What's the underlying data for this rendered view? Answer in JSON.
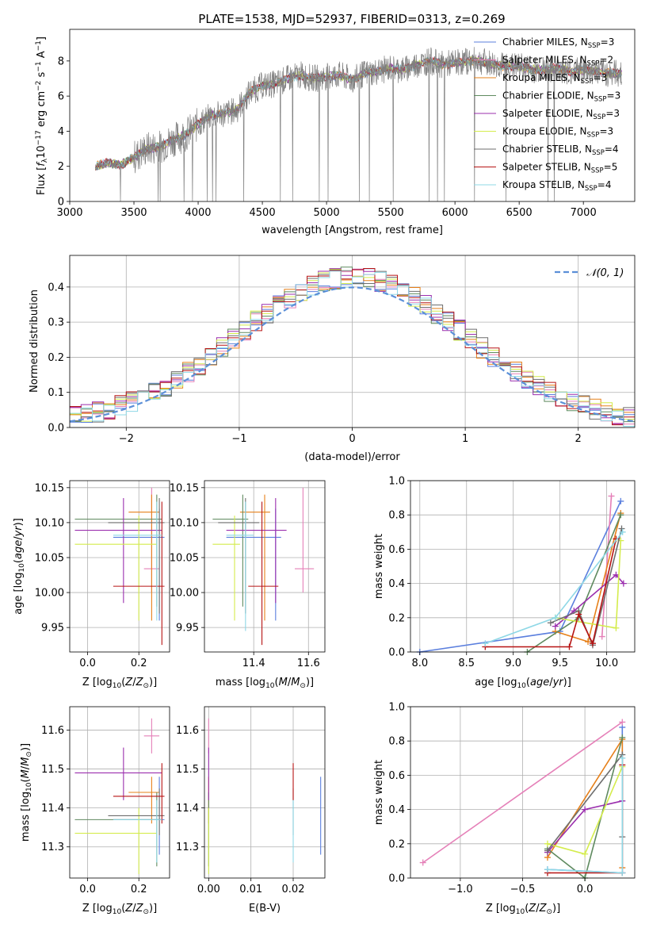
{
  "title": "PLATE=1538, MJD=52937, FIBERID=0313, z=0.269",
  "colors": {
    "Chabrier MILES": "#5b7fde",
    "Salpeter MILES": "#e580b8",
    "Kroupa MILES": "#e6801a",
    "Chabrier ELODIE": "#5f8a5f",
    "Salpeter ELODIE": "#9b2fae",
    "Kroupa ELODIE": "#d4ec4c",
    "Chabrier STELIB": "#6e6e6e",
    "Salpeter STELIB": "#b71414",
    "Kroupa STELIB": "#8fd8e6",
    "normal": "#5b8fd8"
  },
  "chart_data": [
    {
      "type": "line",
      "panel": "spectrum",
      "xlabel": "wavelength [Angstrom, rest frame]",
      "ylabel": "Flux [f_λ 10^-17 erg cm^-2 s^-1 A^-1]",
      "xlim": [
        3000,
        7400
      ],
      "ylim": [
        0,
        9.8
      ],
      "xticks": [
        3000,
        3500,
        4000,
        4500,
        5000,
        5500,
        6000,
        6500,
        7000
      ],
      "yticks": [
        0,
        2,
        4,
        6,
        8
      ],
      "grid": false,
      "legend_position": "top-right",
      "legend": [
        {
          "label": "Chabrier MILES, N_SSP=3",
          "color": "#5b7fde"
        },
        {
          "label": "Salpeter MILES, N_SSP=2",
          "color": "#e580b8"
        },
        {
          "label": "Kroupa MILES, N_SSP=3",
          "color": "#e6801a"
        },
        {
          "label": "Chabrier ELODIE, N_SSP=3",
          "color": "#5f8a5f"
        },
        {
          "label": "Salpeter ELODIE, N_SSP=3",
          "color": "#9b2fae"
        },
        {
          "label": "Kroupa ELODIE, N_SSP=3",
          "color": "#d4ec4c"
        },
        {
          "label": "Chabrier STELIB, N_SSP=4",
          "color": "#6e6e6e"
        },
        {
          "label": "Salpeter STELIB, N_SSP=5",
          "color": "#b71414"
        },
        {
          "label": "Kroupa STELIB, N_SSP=4",
          "color": "#8fd8e6"
        }
      ],
      "continuum": [
        [
          3200,
          2.0
        ],
        [
          3300,
          2.2
        ],
        [
          3400,
          2.1
        ],
        [
          3500,
          2.5
        ],
        [
          3600,
          3.0
        ],
        [
          3700,
          3.1
        ],
        [
          3800,
          3.5
        ],
        [
          3900,
          3.8
        ],
        [
          4000,
          4.4
        ],
        [
          4100,
          4.9
        ],
        [
          4200,
          5.0
        ],
        [
          4300,
          5.2
        ],
        [
          4400,
          6.2
        ],
        [
          4500,
          6.6
        ],
        [
          4600,
          6.7
        ],
        [
          4700,
          7.0
        ],
        [
          4800,
          7.2
        ],
        [
          4900,
          7.0
        ],
        [
          5000,
          7.1
        ],
        [
          5100,
          7.2
        ],
        [
          5200,
          6.9
        ],
        [
          5300,
          7.3
        ],
        [
          5400,
          7.4
        ],
        [
          5500,
          7.6
        ],
        [
          5600,
          7.5
        ],
        [
          5700,
          7.8
        ],
        [
          5800,
          8.0
        ],
        [
          5900,
          7.8
        ],
        [
          6000,
          7.9
        ],
        [
          6100,
          8.0
        ],
        [
          6200,
          8.0
        ],
        [
          6300,
          7.8
        ],
        [
          6400,
          7.7
        ],
        [
          6500,
          7.7
        ],
        [
          6600,
          7.5
        ],
        [
          6700,
          7.5
        ],
        [
          6800,
          7.6
        ],
        [
          6900,
          7.4
        ],
        [
          7000,
          7.5
        ],
        [
          7100,
          7.4
        ],
        [
          7200,
          7.3
        ],
        [
          7300,
          7.3
        ]
      ]
    },
    {
      "type": "step",
      "panel": "residual-histogram",
      "xlabel": "(data-model)/error",
      "ylabel": "Normed distribution",
      "xlim": [
        -2.5,
        2.5
      ],
      "ylim": [
        0,
        0.49
      ],
      "xticks": [
        -2,
        -1,
        0,
        1,
        2
      ],
      "yticks": [
        0.0,
        0.1,
        0.2,
        0.3,
        0.4
      ],
      "grid": true,
      "legend_position": "top-right",
      "legend": [
        {
          "label": "𝒩(0, 1)",
          "color": "#5b8fd8"
        }
      ],
      "bin_width": 0.1
    },
    {
      "type": "errorbar",
      "panel": "age-vs-Z",
      "xlabel": "Z [log10(Z/Z☉)]",
      "ylabel": "age  [log10(age/yr)]",
      "xlim": [
        -0.07,
        0.32
      ],
      "ylim": [
        9.915,
        10.16
      ],
      "xticks": [
        0.0,
        0.2
      ],
      "yticks": [
        9.95,
        10.0,
        10.05,
        10.1,
        10.15
      ],
      "grid": true,
      "points": [
        {
          "name": "Chabrier MILES",
          "x": 0.28,
          "y": 10.079,
          "xlo": 0.1,
          "xhi": 0.3,
          "ylo": 9.96,
          "yhi": 10.12
        },
        {
          "name": "Salpeter MILES",
          "x": 0.25,
          "y": 10.034,
          "xlo": 0.22,
          "xhi": 0.28,
          "ylo": 10.0,
          "yhi": 10.15
        },
        {
          "name": "Kroupa MILES",
          "x": 0.25,
          "y": 10.115,
          "xlo": 0.16,
          "xhi": 0.28,
          "ylo": 9.96,
          "yhi": 10.14
        },
        {
          "name": "Chabrier ELODIE",
          "x": 0.27,
          "y": 10.105,
          "xlo": -0.05,
          "xhi": 0.29,
          "ylo": 9.98,
          "yhi": 10.14
        },
        {
          "name": "Salpeter ELODIE",
          "x": 0.14,
          "y": 10.089,
          "xlo": -0.05,
          "xhi": 0.29,
          "ylo": 9.985,
          "yhi": 10.135
        },
        {
          "name": "Kroupa ELODIE",
          "x": 0.2,
          "y": 10.069,
          "xlo": -0.05,
          "xhi": 0.27,
          "ylo": 9.96,
          "yhi": 10.11
        },
        {
          "name": "Chabrier STELIB",
          "x": 0.28,
          "y": 10.1,
          "xlo": 0.08,
          "xhi": 0.3,
          "ylo": 9.97,
          "yhi": 10.135
        },
        {
          "name": "Salpeter STELIB",
          "x": 0.29,
          "y": 10.009,
          "xlo": 0.1,
          "xhi": 0.3,
          "ylo": 9.925,
          "yhi": 10.13
        },
        {
          "name": "Kroupa STELIB",
          "x": 0.27,
          "y": 10.082,
          "xlo": 0.1,
          "xhi": 0.29,
          "ylo": 9.96,
          "yhi": 10.13
        }
      ]
    },
    {
      "type": "errorbar",
      "panel": "age-vs-mass",
      "xlabel": "mass [log10(M/M☉)]",
      "ylabel": "",
      "xlim": [
        11.22,
        11.66
      ],
      "ylim": [
        9.915,
        10.16
      ],
      "xticks": [
        11.4,
        11.6
      ],
      "yticks": [
        9.95,
        10.0,
        10.05,
        10.1,
        10.15
      ],
      "grid": true,
      "points": [
        {
          "name": "Chabrier MILES",
          "x": 11.48,
          "y": 10.079,
          "xlo": 11.3,
          "xhi": 11.5,
          "ylo": 9.96,
          "yhi": 10.12
        },
        {
          "name": "Salpeter MILES",
          "x": 11.58,
          "y": 10.034,
          "xlo": 11.55,
          "xhi": 11.62,
          "ylo": 10.0,
          "yhi": 10.15
        },
        {
          "name": "Kroupa MILES",
          "x": 11.44,
          "y": 10.115,
          "xlo": 11.35,
          "xhi": 11.46,
          "ylo": 9.96,
          "yhi": 10.14
        },
        {
          "name": "Chabrier ELODIE",
          "x": 11.36,
          "y": 10.105,
          "xlo": 11.25,
          "xhi": 11.38,
          "ylo": 9.98,
          "yhi": 10.14
        },
        {
          "name": "Salpeter ELODIE",
          "x": 11.48,
          "y": 10.089,
          "xlo": 11.3,
          "xhi": 11.52,
          "ylo": 9.985,
          "yhi": 10.135
        },
        {
          "name": "Kroupa ELODIE",
          "x": 11.33,
          "y": 10.069,
          "xlo": 11.25,
          "xhi": 11.35,
          "ylo": 9.96,
          "yhi": 10.11
        },
        {
          "name": "Chabrier STELIB",
          "x": 11.37,
          "y": 10.1,
          "xlo": 11.27,
          "xhi": 11.42,
          "ylo": 9.97,
          "yhi": 10.135
        },
        {
          "name": "Salpeter STELIB",
          "x": 11.43,
          "y": 10.009,
          "xlo": 11.38,
          "xhi": 11.49,
          "ylo": 9.925,
          "yhi": 10.13
        },
        {
          "name": "Kroupa STELIB",
          "x": 11.37,
          "y": 10.082,
          "xlo": 11.3,
          "xhi": 11.4,
          "ylo": 9.945,
          "yhi": 10.13
        }
      ]
    },
    {
      "type": "line",
      "panel": "mass-weight-vs-age",
      "xlabel": "age  [log10(age/yr)]",
      "ylabel": "mass weight",
      "xlim": [
        7.9,
        10.3
      ],
      "ylim": [
        0,
        1.0
      ],
      "xticks": [
        8.0,
        8.5,
        9.0,
        9.5,
        10.0
      ],
      "yticks": [
        0.0,
        0.2,
        0.4,
        0.6,
        0.8,
        1.0
      ],
      "grid": true,
      "series": [
        {
          "name": "Chabrier MILES",
          "x": [
            8.0,
            9.5,
            10.15
          ],
          "y": [
            0.0,
            0.12,
            0.88
          ]
        },
        {
          "name": "Salpeter MILES",
          "x": [
            9.95,
            10.05
          ],
          "y": [
            0.09,
            0.91
          ]
        },
        {
          "name": "Kroupa MILES",
          "x": [
            9.45,
            9.8,
            10.15
          ],
          "y": [
            0.12,
            0.06,
            0.81
          ]
        },
        {
          "name": "Chabrier ELODIE",
          "x": [
            9.15,
            9.7,
            10.15
          ],
          "y": [
            0.0,
            0.2,
            0.8
          ]
        },
        {
          "name": "Salpeter ELODIE",
          "x": [
            9.45,
            9.65,
            10.1,
            10.18
          ],
          "y": [
            0.15,
            0.24,
            0.45,
            0.4
          ]
        },
        {
          "name": "Kroupa ELODIE",
          "x": [
            9.45,
            10.1,
            10.15
          ],
          "y": [
            0.2,
            0.14,
            0.65
          ]
        },
        {
          "name": "Chabrier STELIB",
          "x": [
            9.4,
            9.7,
            9.85,
            10.16
          ],
          "y": [
            0.17,
            0.24,
            0.04,
            0.72
          ]
        },
        {
          "name": "Salpeter STELIB",
          "x": [
            8.7,
            9.6,
            9.7,
            9.85,
            10.1
          ],
          "y": [
            0.03,
            0.03,
            0.22,
            0.05,
            0.66
          ]
        },
        {
          "name": "Kroupa STELIB",
          "x": [
            8.7,
            9.45,
            10.17
          ],
          "y": [
            0.05,
            0.2,
            0.7
          ]
        }
      ]
    },
    {
      "type": "errorbar",
      "panel": "mass-vs-Z",
      "xlabel": "Z [log10(Z/Z☉)]",
      "ylabel": "mass [log10(M/M☉)]",
      "xlim": [
        -0.07,
        0.32
      ],
      "ylim": [
        11.22,
        11.66
      ],
      "xticks": [
        0.0,
        0.2
      ],
      "yticks": [
        11.3,
        11.4,
        11.5,
        11.6
      ],
      "grid": true,
      "points": [
        {
          "name": "Chabrier MILES",
          "x": 0.28,
          "y": 11.37,
          "xlo": 0.1,
          "xhi": 0.3,
          "ylo": 11.28,
          "yhi": 11.48
        },
        {
          "name": "Salpeter MILES",
          "x": 0.25,
          "y": 11.585,
          "xlo": 0.22,
          "xhi": 0.28,
          "ylo": 11.54,
          "yhi": 11.63
        },
        {
          "name": "Kroupa MILES",
          "x": 0.25,
          "y": 11.44,
          "xlo": 0.16,
          "xhi": 0.28,
          "ylo": 11.36,
          "yhi": 11.48
        },
        {
          "name": "Chabrier ELODIE",
          "x": 0.27,
          "y": 11.37,
          "xlo": -0.05,
          "xhi": 0.29,
          "ylo": 11.25,
          "yhi": 11.44
        },
        {
          "name": "Salpeter ELODIE",
          "x": 0.14,
          "y": 11.49,
          "xlo": -0.05,
          "xhi": 0.29,
          "ylo": 11.42,
          "yhi": 11.555
        },
        {
          "name": "Kroupa ELODIE",
          "x": 0.2,
          "y": 11.335,
          "xlo": -0.05,
          "xhi": 0.27,
          "ylo": 11.23,
          "yhi": 11.4
        },
        {
          "name": "Chabrier STELIB",
          "x": 0.28,
          "y": 11.38,
          "xlo": 0.08,
          "xhi": 0.3,
          "ylo": 11.33,
          "yhi": 11.45
        },
        {
          "name": "Salpeter STELIB",
          "x": 0.29,
          "y": 11.43,
          "xlo": 0.1,
          "xhi": 0.3,
          "ylo": 11.36,
          "yhi": 11.515
        },
        {
          "name": "Kroupa STELIB",
          "x": 0.27,
          "y": 11.37,
          "xlo": 0.1,
          "xhi": 0.29,
          "ylo": 11.26,
          "yhi": 11.42
        }
      ]
    },
    {
      "type": "errorbar",
      "panel": "mass-vs-EBV",
      "xlabel": "E(B-V)",
      "ylabel": "",
      "xlim": [
        -0.001,
        0.0275
      ],
      "ylim": [
        11.22,
        11.66
      ],
      "xticks": [
        0.0,
        0.01,
        0.02
      ],
      "yticks": [
        11.3,
        11.4,
        11.5,
        11.6
      ],
      "grid": true,
      "points": [
        {
          "name": "Chabrier MILES",
          "x": 0.0265,
          "y": 11.38,
          "ylo": 11.28,
          "yhi": 11.48
        },
        {
          "name": "Salpeter MILES",
          "x": 0.0,
          "y": 11.585,
          "ylo": 11.54,
          "yhi": 11.63
        },
        {
          "name": "Kroupa MILES",
          "x": 0.0,
          "y": 11.44,
          "ylo": 11.36,
          "yhi": 11.48
        },
        {
          "name": "Chabrier ELODIE",
          "x": 0.0,
          "y": 11.37,
          "ylo": 11.25,
          "yhi": 11.44
        },
        {
          "name": "Salpeter ELODIE",
          "x": 0.0,
          "y": 11.49,
          "ylo": 11.42,
          "yhi": 11.555
        },
        {
          "name": "Kroupa ELODIE",
          "x": 0.0,
          "y": 11.335,
          "ylo": 11.23,
          "yhi": 11.4
        },
        {
          "name": "Chabrier STELIB",
          "x": 0.02,
          "y": 11.38,
          "ylo": 11.33,
          "yhi": 11.45
        },
        {
          "name": "Salpeter STELIB",
          "x": 0.02,
          "y": 11.47,
          "ylo": 11.42,
          "yhi": 11.515
        },
        {
          "name": "Kroupa STELIB",
          "x": 0.02,
          "y": 11.34,
          "ylo": 11.26,
          "yhi": 11.42
        }
      ]
    },
    {
      "type": "line",
      "panel": "mass-weight-vs-Z",
      "xlabel": "Z [log10(Z/Z☉)]",
      "ylabel": "mass weight",
      "xlim": [
        -1.4,
        0.4
      ],
      "ylim": [
        0,
        1.0
      ],
      "xticks": [
        -1.0,
        -0.5,
        0.0
      ],
      "yticks": [
        0.0,
        0.2,
        0.4,
        0.6,
        0.8,
        1.0
      ],
      "grid": true,
      "series": [
        {
          "name": "Chabrier MILES",
          "x": [
            -0.3,
            0.3,
            0.3
          ],
          "y": [
            0.05,
            0.03,
            0.88
          ]
        },
        {
          "name": "Salpeter MILES",
          "x": [
            -1.3,
            0.3
          ],
          "y": [
            0.09,
            0.91
          ]
        },
        {
          "name": "Kroupa MILES",
          "x": [
            -0.3,
            0.3,
            0.3
          ],
          "y": [
            0.12,
            0.81,
            0.06
          ]
        },
        {
          "name": "Chabrier ELODIE",
          "x": [
            -0.3,
            0.0,
            0.3
          ],
          "y": [
            0.17,
            0.0,
            0.82
          ]
        },
        {
          "name": "Salpeter ELODIE",
          "x": [
            -0.3,
            0.0,
            0.3
          ],
          "y": [
            0.15,
            0.4,
            0.45
          ]
        },
        {
          "name": "Kroupa ELODIE",
          "x": [
            -0.3,
            0.0,
            0.3
          ],
          "y": [
            0.2,
            0.14,
            0.65
          ]
        },
        {
          "name": "Chabrier STELIB",
          "x": [
            -0.3,
            0.3,
            0.3
          ],
          "y": [
            0.16,
            0.72,
            0.24
          ]
        },
        {
          "name": "Salpeter STELIB",
          "x": [
            -0.3,
            0.3,
            0.3
          ],
          "y": [
            0.03,
            0.03,
            0.66
          ]
        },
        {
          "name": "Kroupa STELIB",
          "x": [
            -0.3,
            0.3,
            0.3
          ],
          "y": [
            0.05,
            0.03,
            0.7
          ]
        }
      ]
    }
  ]
}
